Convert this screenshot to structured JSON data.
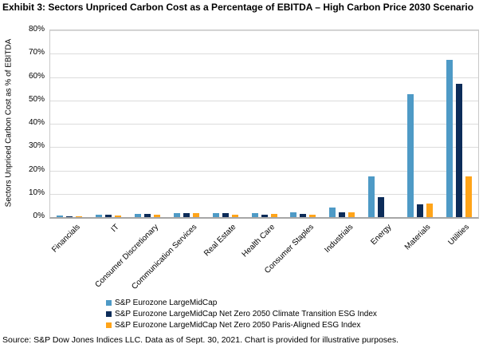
{
  "title": "Exhibit 3: Sectors Unpriced Carbon Cost as a Percentage of EBITDA – High Carbon Price 2030 Scenario",
  "source_note": "Source: S&P Dow Jones Indices LLC. Data as of Sept. 30, 2021. Chart is provided for illustrative purposes.",
  "colors": {
    "series_benchmark": "#4E9AC6",
    "series_climate_transition": "#0C2C59",
    "series_paris_aligned": "#FFA419",
    "gridline": "#DCDCDC",
    "axis_line": "#A6A6A6",
    "plot_border": "#C9C9C9"
  },
  "chart_data": {
    "type": "bar",
    "title": "Exhibit 3: Sectors Unpriced Carbon Cost as a Percentage of EBITDA – High Carbon Price 2030 Scenario",
    "xlabel": "",
    "ylabel": "Sectors Unpriced Carbon Cost as % of EBITDA",
    "ylim": [
      0,
      80
    ],
    "yticks": [
      0,
      10,
      20,
      30,
      40,
      50,
      60,
      70,
      80
    ],
    "ytick_labels": [
      "0%",
      "10%",
      "20%",
      "30%",
      "40%",
      "50%",
      "60%",
      "70%",
      "80%"
    ],
    "grid": true,
    "legend_position": "bottom",
    "categories": [
      "Financials",
      "IT",
      "Consumer Discretionary",
      "Communication Services",
      "Real Estate",
      "Health Care",
      "Consumer Staples",
      "Industrials",
      "Energy",
      "Materials",
      "Utilities"
    ],
    "series": [
      {
        "name": "S&P Eurozone LargeMidCap",
        "color": "#4E9AC6",
        "values": [
          0.6,
          1.0,
          1.5,
          1.7,
          1.6,
          1.6,
          1.9,
          4.2,
          17.3,
          52.7,
          67.5
        ]
      },
      {
        "name": "S&P Eurozone LargeMidCap Net Zero 2050 Climate Transition ESG Index",
        "color": "#0C2C59",
        "values": [
          0.5,
          0.9,
          1.5,
          1.7,
          1.6,
          1.1,
          1.4,
          2.2,
          8.7,
          5.6,
          57.0
        ]
      },
      {
        "name": "S&P Eurozone LargeMidCap Net Zero 2050 Paris-Aligned ESG Index",
        "color": "#FFA419",
        "values": [
          0.5,
          0.6,
          1.2,
          1.7,
          0.9,
          1.3,
          1.2,
          1.9,
          0,
          5.7,
          17.5
        ]
      }
    ]
  }
}
